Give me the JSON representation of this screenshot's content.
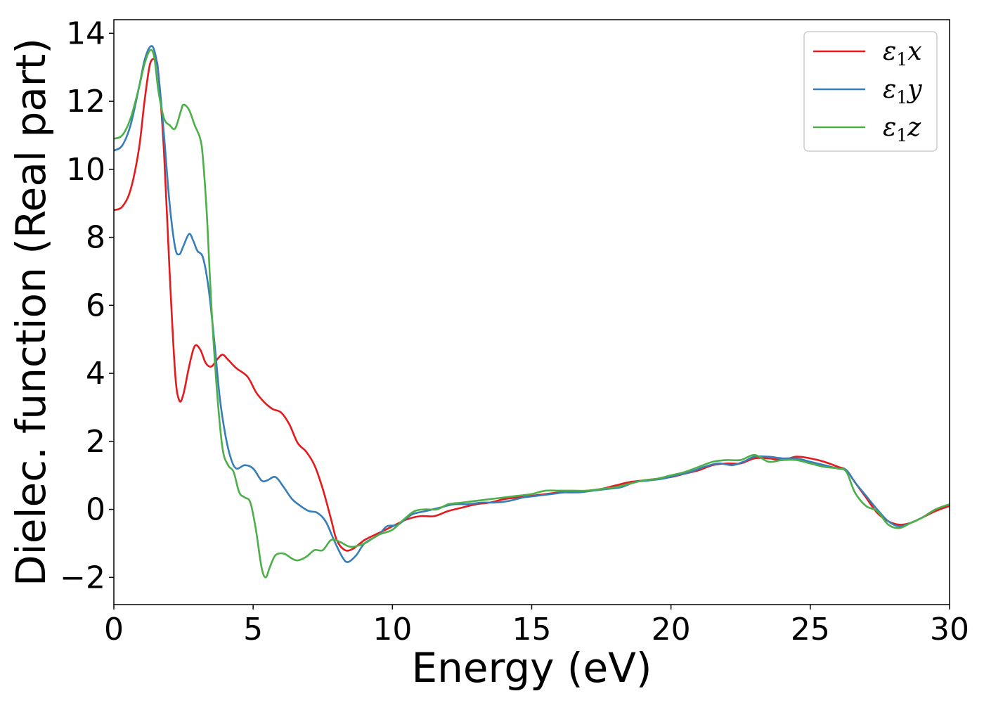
{
  "chart_data": {
    "type": "line",
    "xlabel": "Energy (eV)",
    "ylabel": "Dielec. function (Real part)",
    "xlim": [
      0,
      30
    ],
    "ylim": [
      -2.8,
      14.4
    ],
    "xticks": [
      0,
      5,
      10,
      15,
      20,
      25,
      30
    ],
    "xtick_labels": [
      "0",
      "5",
      "10",
      "15",
      "20",
      "25",
      "30"
    ],
    "yticks": [
      -2,
      0,
      2,
      4,
      6,
      8,
      10,
      12,
      14
    ],
    "ytick_labels": [
      "−2",
      "0",
      "2",
      "4",
      "6",
      "8",
      "10",
      "12",
      "14"
    ],
    "grid": false,
    "legend_position": "top-right",
    "series": [
      {
        "name": "ε₁x",
        "label_base": "ε",
        "label_sub": "1",
        "label_var": "x",
        "color": "#e41a1c",
        "points": [
          [
            0,
            8.8
          ],
          [
            0.3,
            8.9
          ],
          [
            0.6,
            9.4
          ],
          [
            0.9,
            10.6
          ],
          [
            1.1,
            12.0
          ],
          [
            1.3,
            13.1
          ],
          [
            1.5,
            13.2
          ],
          [
            1.6,
            12.8
          ],
          [
            1.8,
            10.5
          ],
          [
            2.0,
            7.0
          ],
          [
            2.2,
            4.0
          ],
          [
            2.35,
            3.2
          ],
          [
            2.5,
            3.4
          ],
          [
            2.7,
            4.2
          ],
          [
            2.9,
            4.8
          ],
          [
            3.1,
            4.7
          ],
          [
            3.3,
            4.3
          ],
          [
            3.5,
            4.2
          ],
          [
            3.7,
            4.4
          ],
          [
            3.9,
            4.55
          ],
          [
            4.1,
            4.4
          ],
          [
            4.4,
            4.15
          ],
          [
            4.8,
            3.9
          ],
          [
            5.1,
            3.45
          ],
          [
            5.4,
            3.15
          ],
          [
            5.7,
            2.95
          ],
          [
            6.0,
            2.85
          ],
          [
            6.3,
            2.5
          ],
          [
            6.6,
            1.95
          ],
          [
            6.9,
            1.7
          ],
          [
            7.2,
            1.3
          ],
          [
            7.5,
            0.6
          ],
          [
            7.8,
            -0.3
          ],
          [
            8.0,
            -0.9
          ],
          [
            8.3,
            -1.2
          ],
          [
            8.6,
            -1.15
          ],
          [
            9.0,
            -0.9
          ],
          [
            9.5,
            -0.7
          ],
          [
            10.0,
            -0.5
          ],
          [
            10.5,
            -0.3
          ],
          [
            11.0,
            -0.2
          ],
          [
            11.5,
            -0.2
          ],
          [
            12.0,
            -0.05
          ],
          [
            12.5,
            0.05
          ],
          [
            13.0,
            0.15
          ],
          [
            13.5,
            0.2
          ],
          [
            14.0,
            0.3
          ],
          [
            14.5,
            0.35
          ],
          [
            15.0,
            0.4
          ],
          [
            15.5,
            0.45
          ],
          [
            16.0,
            0.5
          ],
          [
            16.5,
            0.5
          ],
          [
            17.0,
            0.55
          ],
          [
            17.5,
            0.6
          ],
          [
            18.0,
            0.7
          ],
          [
            18.5,
            0.8
          ],
          [
            19.0,
            0.85
          ],
          [
            19.5,
            0.9
          ],
          [
            20.0,
            0.95
          ],
          [
            20.5,
            1.05
          ],
          [
            21.0,
            1.15
          ],
          [
            21.5,
            1.3
          ],
          [
            22.0,
            1.35
          ],
          [
            22.5,
            1.35
          ],
          [
            23.0,
            1.5
          ],
          [
            23.5,
            1.5
          ],
          [
            24.0,
            1.45
          ],
          [
            24.5,
            1.55
          ],
          [
            25.0,
            1.5
          ],
          [
            25.5,
            1.4
          ],
          [
            26.0,
            1.25
          ],
          [
            26.3,
            1.15
          ],
          [
            26.6,
            0.8
          ],
          [
            27.0,
            0.35
          ],
          [
            27.4,
            -0.1
          ],
          [
            27.8,
            -0.35
          ],
          [
            28.2,
            -0.45
          ],
          [
            28.6,
            -0.4
          ],
          [
            29.0,
            -0.25
          ],
          [
            29.5,
            -0.05
          ],
          [
            30,
            0.1
          ]
        ]
      },
      {
        "name": "ε₁y",
        "label_base": "ε",
        "label_sub": "1",
        "label_var": "y",
        "color": "#377eb8",
        "points": [
          [
            0,
            10.55
          ],
          [
            0.3,
            10.7
          ],
          [
            0.6,
            11.3
          ],
          [
            0.9,
            12.4
          ],
          [
            1.1,
            13.2
          ],
          [
            1.3,
            13.6
          ],
          [
            1.45,
            13.5
          ],
          [
            1.6,
            12.8
          ],
          [
            1.8,
            11.0
          ],
          [
            2.0,
            9.0
          ],
          [
            2.2,
            7.7
          ],
          [
            2.35,
            7.5
          ],
          [
            2.5,
            7.75
          ],
          [
            2.7,
            8.1
          ],
          [
            2.85,
            7.9
          ],
          [
            3.0,
            7.6
          ],
          [
            3.2,
            7.4
          ],
          [
            3.4,
            6.5
          ],
          [
            3.6,
            5.0
          ],
          [
            3.8,
            3.3
          ],
          [
            4.0,
            2.2
          ],
          [
            4.2,
            1.5
          ],
          [
            4.4,
            1.2
          ],
          [
            4.7,
            1.3
          ],
          [
            5.0,
            1.2
          ],
          [
            5.3,
            0.85
          ],
          [
            5.5,
            0.85
          ],
          [
            5.8,
            0.95
          ],
          [
            6.1,
            0.65
          ],
          [
            6.4,
            0.3
          ],
          [
            6.7,
            0.1
          ],
          [
            7.0,
            -0.05
          ],
          [
            7.3,
            -0.1
          ],
          [
            7.6,
            -0.35
          ],
          [
            7.9,
            -0.9
          ],
          [
            8.2,
            -1.4
          ],
          [
            8.4,
            -1.55
          ],
          [
            8.7,
            -1.35
          ],
          [
            9.0,
            -1.0
          ],
          [
            9.5,
            -0.75
          ],
          [
            9.8,
            -0.5
          ],
          [
            10.2,
            -0.45
          ],
          [
            10.7,
            -0.15
          ],
          [
            11.2,
            -0.05
          ],
          [
            11.7,
            0.05
          ],
          [
            12.2,
            0.15
          ],
          [
            12.7,
            0.15
          ],
          [
            13.2,
            0.2
          ],
          [
            13.7,
            0.2
          ],
          [
            14.2,
            0.25
          ],
          [
            14.7,
            0.35
          ],
          [
            15.2,
            0.4
          ],
          [
            15.7,
            0.45
          ],
          [
            16.2,
            0.5
          ],
          [
            16.7,
            0.5
          ],
          [
            17.2,
            0.55
          ],
          [
            17.7,
            0.6
          ],
          [
            18.2,
            0.65
          ],
          [
            18.7,
            0.8
          ],
          [
            19.2,
            0.85
          ],
          [
            19.7,
            0.9
          ],
          [
            20.2,
            1.0
          ],
          [
            20.7,
            1.1
          ],
          [
            21.2,
            1.25
          ],
          [
            21.7,
            1.35
          ],
          [
            22.2,
            1.3
          ],
          [
            22.6,
            1.4
          ],
          [
            23.0,
            1.55
          ],
          [
            23.5,
            1.55
          ],
          [
            24.0,
            1.5
          ],
          [
            24.5,
            1.5
          ],
          [
            25.0,
            1.4
          ],
          [
            25.5,
            1.3
          ],
          [
            26.0,
            1.2
          ],
          [
            26.3,
            1.15
          ],
          [
            26.6,
            0.8
          ],
          [
            27.0,
            0.4
          ],
          [
            27.4,
            0.0
          ],
          [
            27.8,
            -0.35
          ],
          [
            28.2,
            -0.5
          ],
          [
            28.6,
            -0.4
          ],
          [
            29.0,
            -0.25
          ],
          [
            29.5,
            0.0
          ],
          [
            30,
            0.15
          ]
        ]
      },
      {
        "name": "ε₁z",
        "label_base": "ε",
        "label_sub": "1",
        "label_var": "z",
        "color": "#4daf4a",
        "points": [
          [
            0,
            10.9
          ],
          [
            0.3,
            11.0
          ],
          [
            0.6,
            11.5
          ],
          [
            0.9,
            12.4
          ],
          [
            1.1,
            13.1
          ],
          [
            1.3,
            13.5
          ],
          [
            1.45,
            13.3
          ],
          [
            1.6,
            12.3
          ],
          [
            1.8,
            11.5
          ],
          [
            2.0,
            11.3
          ],
          [
            2.2,
            11.2
          ],
          [
            2.4,
            11.7
          ],
          [
            2.5,
            11.9
          ],
          [
            2.7,
            11.75
          ],
          [
            2.9,
            11.3
          ],
          [
            3.1,
            10.9
          ],
          [
            3.2,
            10.3
          ],
          [
            3.35,
            8.5
          ],
          [
            3.5,
            6.0
          ],
          [
            3.7,
            3.5
          ],
          [
            3.9,
            1.8
          ],
          [
            4.1,
            1.3
          ],
          [
            4.3,
            1.1
          ],
          [
            4.5,
            0.5
          ],
          [
            4.7,
            0.35
          ],
          [
            4.9,
            0.2
          ],
          [
            5.1,
            -0.6
          ],
          [
            5.3,
            -1.7
          ],
          [
            5.45,
            -2.0
          ],
          [
            5.6,
            -1.7
          ],
          [
            5.8,
            -1.35
          ],
          [
            6.1,
            -1.3
          ],
          [
            6.4,
            -1.45
          ],
          [
            6.6,
            -1.5
          ],
          [
            6.9,
            -1.4
          ],
          [
            7.2,
            -1.2
          ],
          [
            7.5,
            -1.2
          ],
          [
            7.8,
            -0.9
          ],
          [
            8.1,
            -0.95
          ],
          [
            8.5,
            -1.1
          ],
          [
            9.0,
            -1.0
          ],
          [
            9.5,
            -0.75
          ],
          [
            10.0,
            -0.6
          ],
          [
            10.4,
            -0.3
          ],
          [
            10.8,
            -0.05
          ],
          [
            11.2,
            0.0
          ],
          [
            11.6,
            0.0
          ],
          [
            12.0,
            0.15
          ],
          [
            12.5,
            0.2
          ],
          [
            13.0,
            0.25
          ],
          [
            13.5,
            0.3
          ],
          [
            14.0,
            0.35
          ],
          [
            14.5,
            0.4
          ],
          [
            15.0,
            0.45
          ],
          [
            15.5,
            0.55
          ],
          [
            16.0,
            0.55
          ],
          [
            16.5,
            0.55
          ],
          [
            17.0,
            0.55
          ],
          [
            17.5,
            0.6
          ],
          [
            18.0,
            0.65
          ],
          [
            18.5,
            0.75
          ],
          [
            19.0,
            0.85
          ],
          [
            19.5,
            0.9
          ],
          [
            20.0,
            1.0
          ],
          [
            20.5,
            1.1
          ],
          [
            21.0,
            1.25
          ],
          [
            21.5,
            1.4
          ],
          [
            22.0,
            1.45
          ],
          [
            22.5,
            1.45
          ],
          [
            23.0,
            1.6
          ],
          [
            23.5,
            1.4
          ],
          [
            24.0,
            1.45
          ],
          [
            24.5,
            1.45
          ],
          [
            25.0,
            1.35
          ],
          [
            25.5,
            1.25
          ],
          [
            26.0,
            1.2
          ],
          [
            26.3,
            1.1
          ],
          [
            26.6,
            0.5
          ],
          [
            27.0,
            0.1
          ],
          [
            27.4,
            -0.05
          ],
          [
            27.8,
            -0.45
          ],
          [
            28.2,
            -0.55
          ],
          [
            28.6,
            -0.4
          ],
          [
            29.0,
            -0.25
          ],
          [
            29.5,
            0.0
          ],
          [
            30,
            0.15
          ]
        ]
      }
    ]
  }
}
